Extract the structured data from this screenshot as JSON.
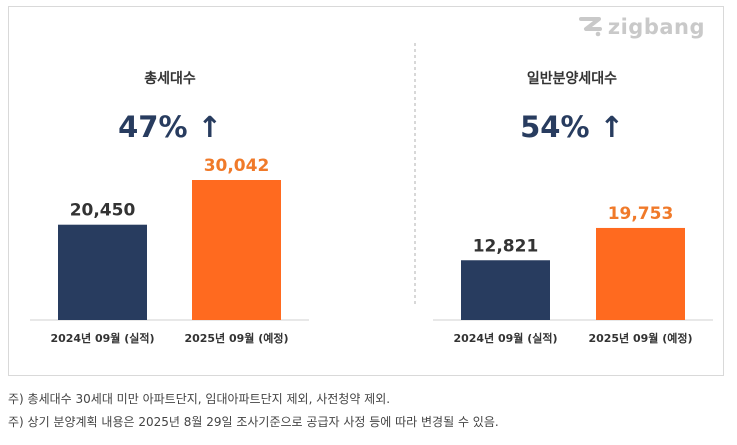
{
  "logo": {
    "text": "zigbang",
    "icon": "zigbang-z-icon"
  },
  "chart_data": [
    {
      "type": "bar",
      "title": "총세대수",
      "change": "47% ↑",
      "categories": [
        "2024년 09월 (실적)",
        "2025년 09월 (예정)"
      ],
      "values": [
        20450,
        30042
      ],
      "value_labels": [
        "20,450",
        "30,042"
      ],
      "colors": [
        "#283c5f",
        "#ff6a1f"
      ],
      "label_colors": [
        "#333333",
        "#f07a2a"
      ]
    },
    {
      "type": "bar",
      "title": "일반분양세대수",
      "change": "54% ↑",
      "categories": [
        "2024년 09월 (실적)",
        "2025년 09월 (예정)"
      ],
      "values": [
        12821,
        19753
      ],
      "value_labels": [
        "12,821",
        "19,753"
      ],
      "colors": [
        "#283c5f",
        "#ff6a1f"
      ],
      "label_colors": [
        "#333333",
        "#f07a2a"
      ]
    }
  ],
  "notes": [
    "주) 총세대수 30세대 미만 아파트단지, 임대아파트단지 제외, 사전청약 제외.",
    "주) 상기 분양계획 내용은 2025년 8월 29일 조사기준으로 공급자 사정 등에 따라 변경될 수 있음."
  ]
}
